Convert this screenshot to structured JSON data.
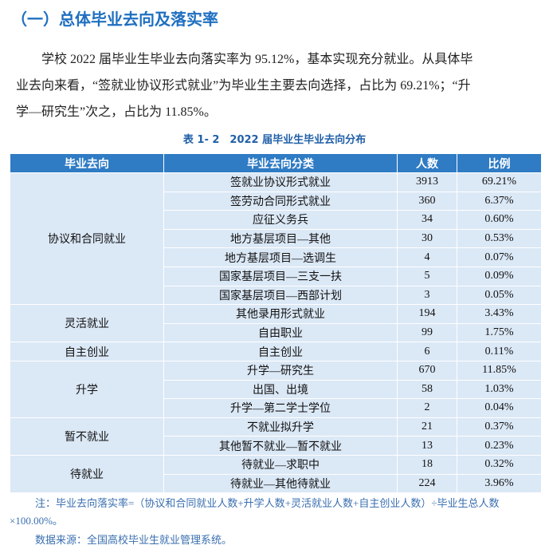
{
  "heading": "（一）总体毕业去向及落实率",
  "paragraph": {
    "lines": [
      "学校 2022 届毕业生毕业去向落实率为 95.12%，基本实现充分就业。从具体毕",
      "业去向来看，“签就业协议形式就业”为毕业生主要去向选择，占比为 69.21%；“升",
      "学—研究生”次之，占比为 11.85%。"
    ]
  },
  "table": {
    "caption": "表 1- 2　2022 届毕业生毕业去向分布",
    "header": [
      "毕业去向",
      "毕业去向分类",
      "人数",
      "比例"
    ],
    "groups": [
      {
        "name": "协议和合同就业",
        "rows": [
          [
            "签就业协议形式就业",
            "3913",
            "69.21%"
          ],
          [
            "签劳动合同形式就业",
            "360",
            "6.37%"
          ],
          [
            "应征义务兵",
            "34",
            "0.60%"
          ],
          [
            "地方基层项目—其他",
            "30",
            "0.53%"
          ],
          [
            "地方基层项目—选调生",
            "4",
            "0.07%"
          ],
          [
            "国家基层项目—三支一扶",
            "5",
            "0.09%"
          ],
          [
            "国家基层项目—西部计划",
            "3",
            "0.05%"
          ]
        ]
      },
      {
        "name": "灵活就业",
        "rows": [
          [
            "其他录用形式就业",
            "194",
            "3.43%"
          ],
          [
            "自由职业",
            "99",
            "1.75%"
          ]
        ]
      },
      {
        "name": "自主创业",
        "rows": [
          [
            "自主创业",
            "6",
            "0.11%"
          ]
        ]
      },
      {
        "name": "升学",
        "rows": [
          [
            "升学—研究生",
            "670",
            "11.85%"
          ],
          [
            "出国、出境",
            "58",
            "1.03%"
          ],
          [
            "升学—第二学士学位",
            "2",
            "0.04%"
          ]
        ]
      },
      {
        "name": "暂不就业",
        "rows": [
          [
            "不就业拟升学",
            "21",
            "0.37%"
          ],
          [
            "其他暂不就业—暂不就业",
            "13",
            "0.23%"
          ]
        ]
      },
      {
        "name": "待就业",
        "rows": [
          [
            "待就业—求职中",
            "18",
            "0.32%"
          ],
          [
            "待就业—其他待就业",
            "224",
            "3.96%"
          ]
        ]
      }
    ]
  },
  "notes": [
    "注：毕业去向落实率=（协议和合同就业人数+升学人数+灵活就业人数+自主创业人数）÷毕业生总人数×100.00%。",
    "数据来源：全国高校毕业生就业管理系统。"
  ]
}
